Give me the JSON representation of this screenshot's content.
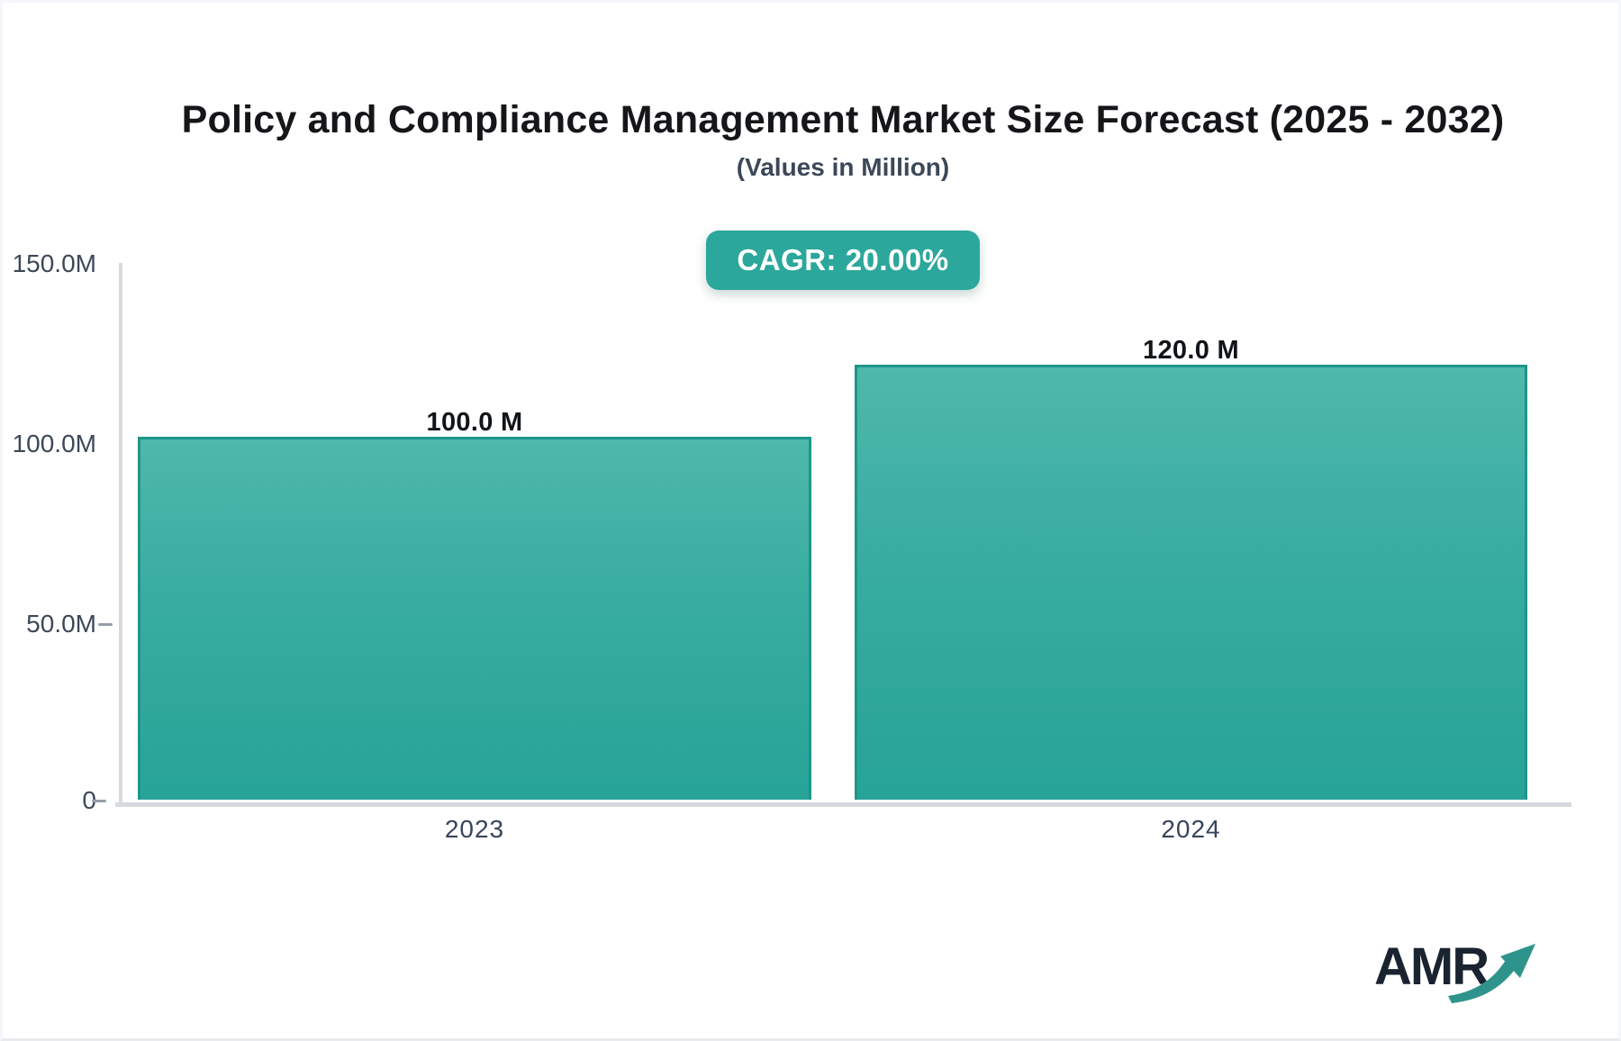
{
  "header": {
    "title": "Policy and Compliance Management Market Size Forecast (2025 - 2032)",
    "subtitle": "(Values in Million)",
    "cagr_badge": "CAGR: 20.00%"
  },
  "chart_data": {
    "type": "bar",
    "categories": [
      "2023",
      "2024"
    ],
    "values": [
      100.0,
      120.0
    ],
    "bar_labels": [
      "100.0 M",
      "120.0 M"
    ],
    "title": "Policy and Compliance Management Market Size Forecast (2025 - 2032)",
    "subtitle": "(Values in Million)",
    "unit": "Million",
    "ylabel": "",
    "xlabel": "",
    "ylim": [
      0,
      150
    ],
    "y_ticks": [
      "150.0M",
      "100.0M",
      "50.0M",
      "0"
    ],
    "grid": false,
    "legend": "none",
    "colors": {
      "bar_gradient_top": "#4FB8AC",
      "bar_gradient_bottom": "#27A397",
      "bar_border": "#1E9589",
      "axis_line": "#D6DADE",
      "tick_dash": "#979EA9",
      "tick_label": "#3C4858",
      "badge_background": "#2BA79B",
      "badge_text": "#FFFFFF"
    }
  },
  "branding": {
    "logo_text": "AMR",
    "logo_text_color": "#1A2330",
    "logo_arrow_color": "#2E938B",
    "logo_arrow_icon": "growth-arrow-icon"
  }
}
